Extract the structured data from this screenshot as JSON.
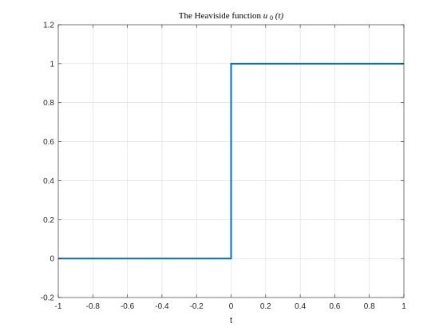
{
  "chart_data": {
    "type": "line",
    "title_main": "The Heaviside function ",
    "title_math_base": "u",
    "title_math_sub": "0",
    "title_math_arg": "(t)",
    "xlabel": "t",
    "ylabel": "",
    "xlim": [
      -1,
      1
    ],
    "ylim": [
      -0.2,
      1.2
    ],
    "x_ticks": [
      "-1",
      "-0.8",
      "-0.6",
      "-0.4",
      "-0.2",
      "0",
      "0.2",
      "0.4",
      "0.6",
      "0.8",
      "1"
    ],
    "y_ticks": [
      "-0.2",
      "0",
      "0.2",
      "0.4",
      "0.6",
      "0.8",
      "1",
      "1.2"
    ],
    "grid": true,
    "series": [
      {
        "color": "#0072bd",
        "x": [
          -1,
          0,
          0,
          1
        ],
        "y": [
          0,
          0,
          1,
          1
        ]
      }
    ]
  }
}
